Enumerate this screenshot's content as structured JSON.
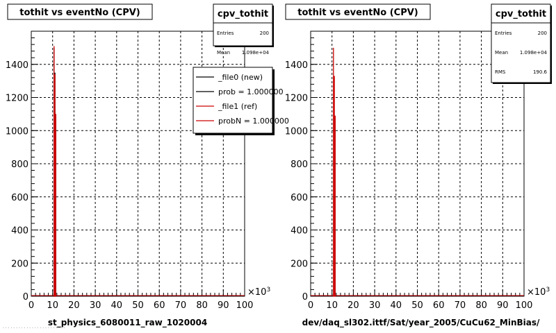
{
  "chart_data": [
    {
      "type": "line",
      "panel": "left",
      "title": "tothit vs eventNo (CPV)",
      "xlabel": "st_physics_6080011_raw_1020004",
      "ylabel": "",
      "xlim": [
        0,
        100
      ],
      "ylim": [
        0,
        1600
      ],
      "x_ticks": [
        0,
        10,
        20,
        30,
        40,
        50,
        60,
        70,
        80,
        90,
        100
      ],
      "y_ticks": [
        0,
        200,
        400,
        600,
        800,
        1000,
        1200,
        1400
      ],
      "x_multiplier": "×10",
      "x_multiplier_exp": "3",
      "grid": true,
      "stats": {
        "name": "cpv_tothit",
        "entries_label": "Entries",
        "entries": "200",
        "mean_label": "Mean",
        "mean": "1.098e+04"
      },
      "legend": {
        "placement": "top-right",
        "entries": [
          {
            "label": "_file0 (new)",
            "color": "#000000"
          },
          {
            "label": "prob = 1.000000",
            "color": "#000000"
          },
          {
            "label": "_file1 (ref)",
            "color": "#cc0000"
          },
          {
            "label": "probN = 1.000000",
            "color": "#cc0000"
          }
        ]
      },
      "series": [
        {
          "name": "_file0 (new)",
          "color": "#000000",
          "x": [
            10.7,
            10.9,
            11.1,
            11.3,
            11.5
          ],
          "values": [
            1500,
            400,
            1350,
            900,
            1100
          ]
        },
        {
          "name": "_file1 (ref)",
          "color": "#cc0000",
          "x": [
            10.7,
            10.9,
            11.1,
            11.3,
            11.5
          ],
          "values": [
            1510,
            380,
            1340,
            380,
            1100
          ]
        }
      ]
    },
    {
      "type": "line",
      "panel": "right",
      "title": "tothit vs eventNo (CPV)",
      "xlabel": "dev/daq_sl302.ittf/Sat/year_2005/CuCu62_MinBias/",
      "ylabel": "",
      "xlim": [
        0,
        100
      ],
      "ylim": [
        0,
        1600
      ],
      "x_ticks": [
        0,
        10,
        20,
        30,
        40,
        50,
        60,
        70,
        80,
        90,
        100
      ],
      "y_ticks": [
        0,
        200,
        400,
        600,
        800,
        1000,
        1200,
        1400
      ],
      "x_multiplier": "×10",
      "x_multiplier_exp": "3",
      "grid": true,
      "stats": {
        "name": "cpv_tothit",
        "entries_label": "Entries",
        "entries": "200",
        "mean_label": "Mean",
        "mean": "1.098e+04",
        "rms_label": "RMS",
        "rms": "190.6"
      },
      "series": [
        {
          "name": "",
          "color": "#cc0000",
          "x": [
            10.7,
            10.9,
            11.1,
            11.3,
            11.5
          ],
          "values": [
            1500,
            400,
            1330,
            380,
            1090
          ]
        }
      ]
    }
  ],
  "footer_note": "· · · · · · ·  · · · · · · · · · · · · · · · · ·"
}
